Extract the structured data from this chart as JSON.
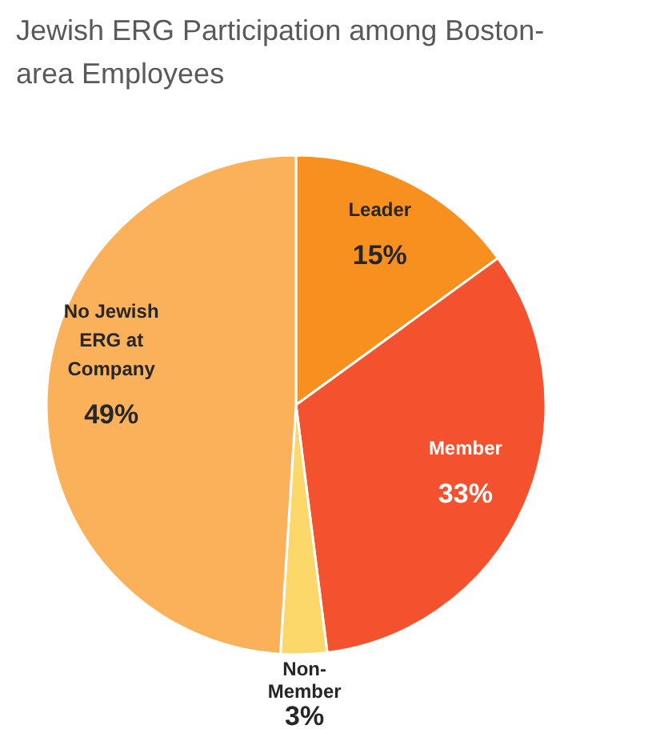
{
  "chart_data": {
    "type": "pie",
    "title": "Jewish ERG Participation among Boston-area Employees",
    "categories": [
      "Leader",
      "Member",
      "Non-Member",
      "No Jewish ERG at Company"
    ],
    "values": [
      15,
      33,
      3,
      49
    ],
    "colors": [
      "#f7901e",
      "#f4522f",
      "#fcd86b",
      "#fbb05a"
    ],
    "value_labels": [
      "15%",
      "33%",
      "3%",
      "49%"
    ],
    "legend": false
  }
}
